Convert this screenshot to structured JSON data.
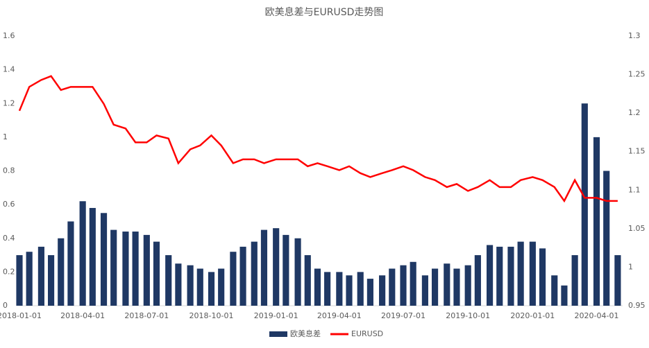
{
  "chart_data": {
    "type": "bar-line",
    "title": "欧美息差与EURUSD走势图",
    "x": [
      "2018-01-01",
      "2018-01-15",
      "2018-02-01",
      "2018-02-15",
      "2018-03-01",
      "2018-03-15",
      "2018-04-01",
      "2018-04-15",
      "2018-05-01",
      "2018-05-15",
      "2018-06-01",
      "2018-06-15",
      "2018-07-01",
      "2018-07-15",
      "2018-08-01",
      "2018-08-15",
      "2018-09-01",
      "2018-09-15",
      "2018-10-01",
      "2018-10-15",
      "2018-11-01",
      "2018-11-15",
      "2018-12-01",
      "2018-12-15",
      "2019-01-01",
      "2019-01-15",
      "2019-02-01",
      "2019-02-15",
      "2019-03-01",
      "2019-03-15",
      "2019-04-01",
      "2019-04-15",
      "2019-05-01",
      "2019-05-15",
      "2019-06-01",
      "2019-06-15",
      "2019-07-01",
      "2019-07-15",
      "2019-08-01",
      "2019-08-15",
      "2019-09-01",
      "2019-09-15",
      "2019-10-01",
      "2019-10-15",
      "2019-11-01",
      "2019-11-15",
      "2019-12-01",
      "2019-12-15",
      "2020-01-01",
      "2020-01-15",
      "2020-02-01",
      "2020-02-15",
      "2020-03-01",
      "2020-03-15",
      "2020-04-01",
      "2020-04-15",
      "2020-05-01"
    ],
    "series": [
      {
        "name": "欧美息差",
        "type": "bar",
        "color": "#1f3864",
        "values": [
          0.3,
          0.32,
          0.35,
          0.3,
          0.4,
          0.5,
          0.62,
          0.58,
          0.55,
          0.45,
          0.44,
          0.44,
          0.42,
          0.38,
          0.3,
          0.25,
          0.24,
          0.22,
          0.2,
          0.22,
          0.32,
          0.35,
          0.38,
          0.45,
          0.46,
          0.42,
          0.4,
          0.3,
          0.22,
          0.2,
          0.2,
          0.18,
          0.2,
          0.16,
          0.18,
          0.22,
          0.24,
          0.26,
          0.18,
          0.22,
          0.25,
          0.22,
          0.24,
          0.3,
          0.36,
          0.35,
          0.35,
          0.38,
          0.38,
          0.34,
          0.18,
          0.12,
          0.3,
          1.2,
          1.0,
          0.8,
          0.3
        ]
      },
      {
        "name": "EURUSD",
        "type": "line",
        "axis": "y2",
        "color": "#ff0000",
        "values": [
          1.203,
          1.234,
          1.243,
          1.248,
          1.23,
          1.234,
          1.234,
          1.234,
          1.212,
          1.185,
          1.18,
          1.162,
          1.162,
          1.171,
          1.167,
          1.135,
          1.153,
          1.158,
          1.171,
          1.158,
          1.135,
          1.14,
          1.14,
          1.135,
          1.14,
          1.14,
          1.14,
          1.131,
          1.135,
          1.131,
          1.126,
          1.131,
          1.122,
          1.117,
          1.122,
          1.126,
          1.131,
          1.126,
          1.117,
          1.113,
          1.104,
          1.108,
          1.099,
          1.104,
          1.113,
          1.104,
          1.104,
          1.113,
          1.117,
          1.113,
          1.104,
          1.086,
          1.113,
          1.09,
          1.09,
          1.086,
          1.086
        ]
      }
    ],
    "xlim": [
      "2018-01-01",
      "2020-05-08"
    ],
    "xticks": [
      "2018-01-01",
      "2018-04-01",
      "2018-07-01",
      "2018-10-01",
      "2019-01-01",
      "2019-04-01",
      "2019-07-01",
      "2019-10-01",
      "2020-01-01",
      "2020-04-01"
    ],
    "ylim": [
      0,
      1.6
    ],
    "yticks": [
      0,
      0.2,
      0.4,
      0.6,
      0.8,
      1,
      1.2,
      1.4,
      1.6
    ],
    "y2lim": [
      0.95,
      1.3
    ],
    "y2ticks": [
      0.95,
      1,
      1.05,
      1.1,
      1.15,
      1.2,
      1.25,
      1.3
    ],
    "legend": "bottom"
  }
}
